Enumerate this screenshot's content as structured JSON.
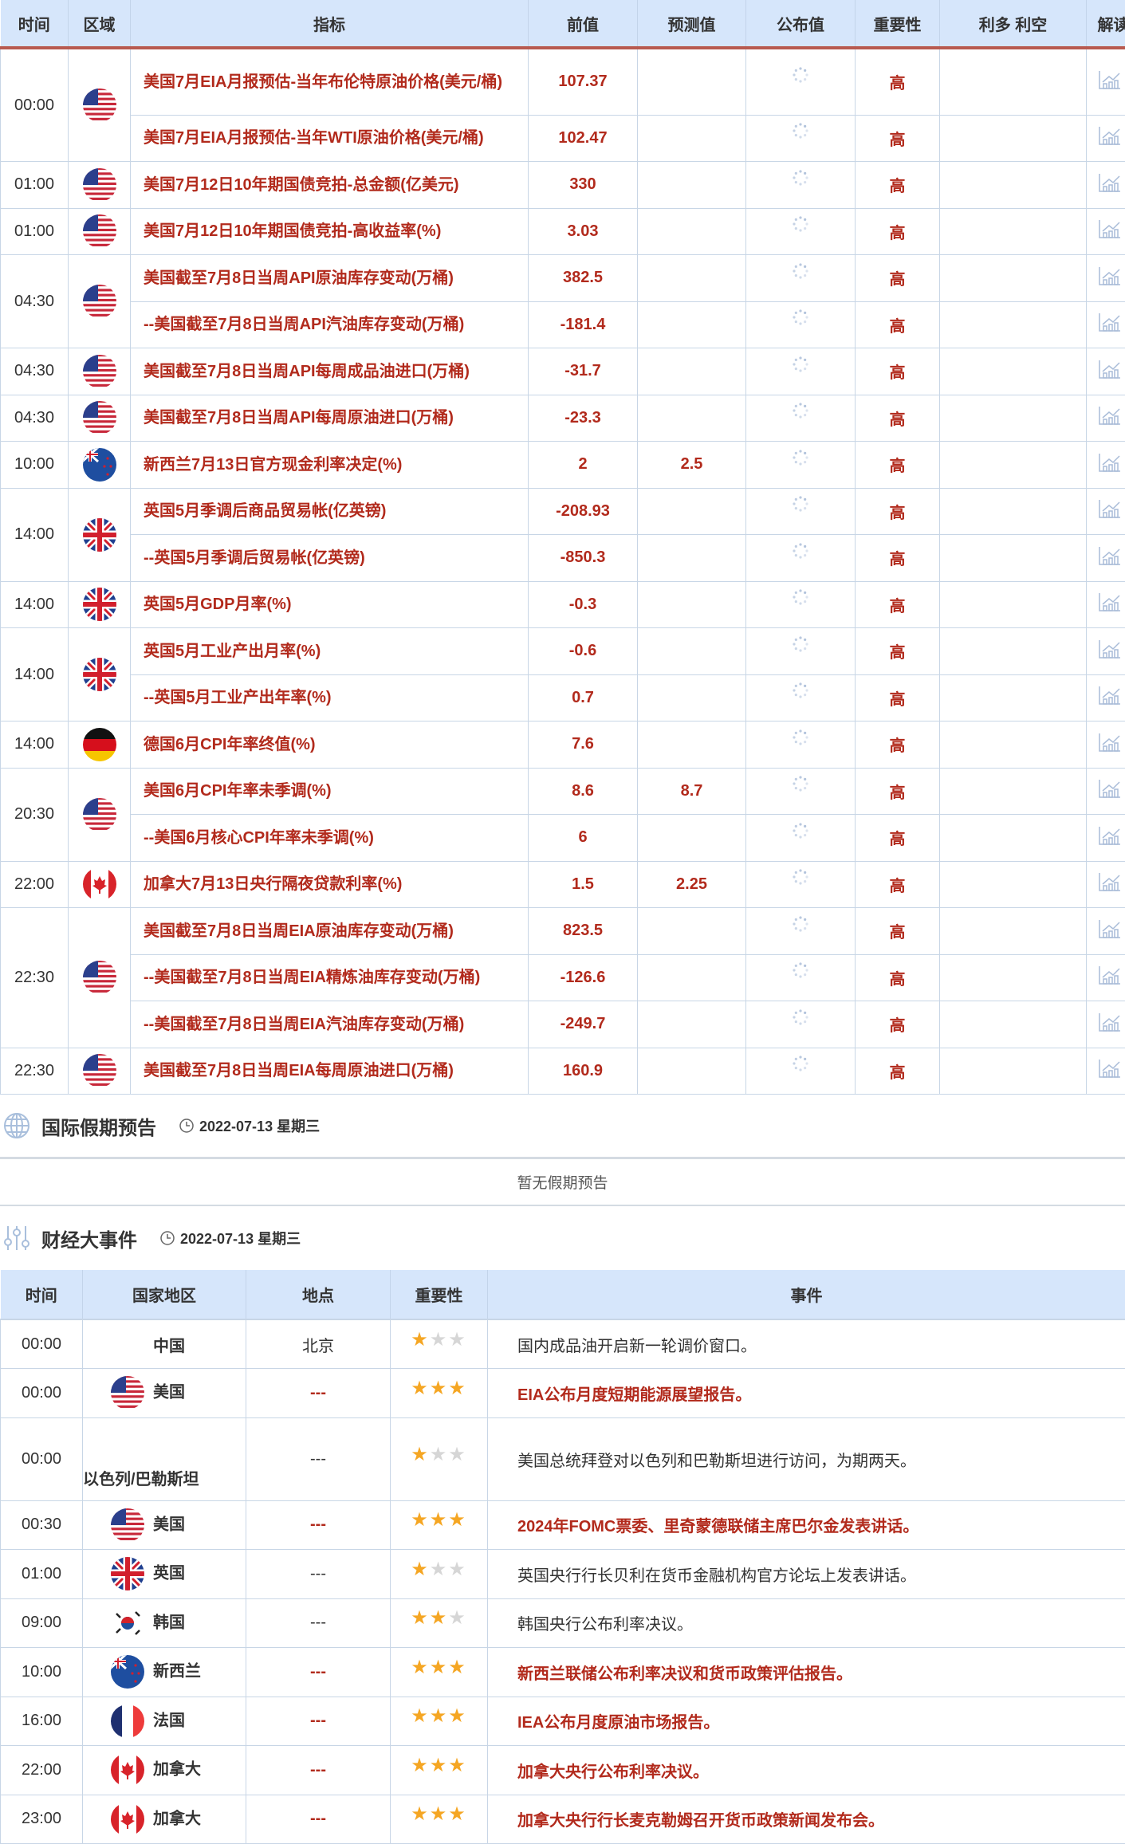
{
  "econ_table": {
    "headers": [
      "时间",
      "区域",
      "指标",
      "前值",
      "预测值",
      "公布值",
      "重要性",
      "利多 利空",
      "解读"
    ],
    "groups": [
      {
        "time": "00:00",
        "flag": "us",
        "rows": [
          {
            "indicator": "美国7月EIA月报预估-当年布伦特原油价格(美元/桶)",
            "previous": "107.37",
            "forecast": "",
            "importance": "高"
          },
          {
            "indicator": "美国7月EIA月报预估-当年WTI原油价格(美元/桶)",
            "previous": "102.47",
            "forecast": "",
            "importance": "高"
          }
        ]
      },
      {
        "time": "01:00",
        "flag": "us",
        "rows": [
          {
            "indicator": "美国7月12日10年期国债竞拍-总金额(亿美元)",
            "previous": "330",
            "forecast": "",
            "importance": "高"
          }
        ]
      },
      {
        "time": "01:00",
        "flag": "us",
        "rows": [
          {
            "indicator": "美国7月12日10年期国债竞拍-高收益率(%)",
            "previous": "3.03",
            "forecast": "",
            "importance": "高"
          }
        ]
      },
      {
        "time": "04:30",
        "flag": "us",
        "rows": [
          {
            "indicator": "美国截至7月8日当周API原油库存变动(万桶)",
            "previous": "382.5",
            "forecast": "",
            "importance": "高"
          },
          {
            "indicator": "--美国截至7月8日当周API汽油库存变动(万桶)",
            "previous": "-181.4",
            "forecast": "",
            "importance": "高"
          }
        ]
      },
      {
        "time": "04:30",
        "flag": "us",
        "rows": [
          {
            "indicator": "美国截至7月8日当周API每周成品油进口(万桶)",
            "previous": "-31.7",
            "forecast": "",
            "importance": "高"
          }
        ]
      },
      {
        "time": "04:30",
        "flag": "us",
        "rows": [
          {
            "indicator": "美国截至7月8日当周API每周原油进口(万桶)",
            "previous": "-23.3",
            "forecast": "",
            "importance": "高"
          }
        ]
      },
      {
        "time": "10:00",
        "flag": "nz",
        "rows": [
          {
            "indicator": "新西兰7月13日官方现金利率决定(%)",
            "previous": "2",
            "forecast": "2.5",
            "importance": "高"
          }
        ]
      },
      {
        "time": "14:00",
        "flag": "uk",
        "rows": [
          {
            "indicator": "英国5月季调后商品贸易帐(亿英镑)",
            "previous": "-208.93",
            "forecast": "",
            "importance": "高"
          },
          {
            "indicator": "--英国5月季调后贸易帐(亿英镑)",
            "previous": "-850.3",
            "forecast": "",
            "importance": "高"
          }
        ]
      },
      {
        "time": "14:00",
        "flag": "uk",
        "rows": [
          {
            "indicator": "英国5月GDP月率(%)",
            "previous": "-0.3",
            "forecast": "",
            "importance": "高"
          }
        ]
      },
      {
        "time": "14:00",
        "flag": "uk",
        "rows": [
          {
            "indicator": "英国5月工业产出月率(%)",
            "previous": "-0.6",
            "forecast": "",
            "importance": "高"
          },
          {
            "indicator": "--英国5月工业产出年率(%)",
            "previous": "0.7",
            "forecast": "",
            "importance": "高"
          }
        ]
      },
      {
        "time": "14:00",
        "flag": "de",
        "rows": [
          {
            "indicator": "德国6月CPI年率终值(%)",
            "previous": "7.6",
            "forecast": "",
            "importance": "高"
          }
        ]
      },
      {
        "time": "20:30",
        "flag": "us",
        "rows": [
          {
            "indicator": "美国6月CPI年率未季调(%)",
            "previous": "8.6",
            "forecast": "8.7",
            "importance": "高"
          },
          {
            "indicator": "--美国6月核心CPI年率未季调(%)",
            "previous": "6",
            "forecast": "",
            "importance": "高"
          }
        ]
      },
      {
        "time": "22:00",
        "flag": "ca",
        "rows": [
          {
            "indicator": "加拿大7月13日央行隔夜贷款利率(%)",
            "previous": "1.5",
            "forecast": "2.25",
            "importance": "高"
          }
        ]
      },
      {
        "time": "22:30",
        "flag": "us",
        "rows": [
          {
            "indicator": "美国截至7月8日当周EIA原油库存变动(万桶)",
            "previous": "823.5",
            "forecast": "",
            "importance": "高"
          },
          {
            "indicator": "--美国截至7月8日当周EIA精炼油库存变动(万桶)",
            "previous": "-126.6",
            "forecast": "",
            "importance": "高"
          },
          {
            "indicator": "--美国截至7月8日当周EIA汽油库存变动(万桶)",
            "previous": "-249.7",
            "forecast": "",
            "importance": "高"
          }
        ]
      },
      {
        "time": "22:30",
        "flag": "us",
        "rows": [
          {
            "indicator": "美国截至7月8日当周EIA每周原油进口(万桶)",
            "previous": "160.9",
            "forecast": "",
            "importance": "高"
          }
        ]
      }
    ]
  },
  "holidays": {
    "title": "国际假期预告",
    "date": "2022-07-13 星期三",
    "empty_text": "暂无假期预告"
  },
  "events": {
    "title": "财经大事件",
    "date": "2022-07-13 星期三",
    "headers": [
      "时间",
      "国家地区",
      "地点",
      "重要性",
      "事件"
    ],
    "rows": [
      {
        "time": "00:00",
        "flag": "",
        "country": "中国",
        "location": "北京",
        "stars": 1,
        "event": "国内成品油开启新一轮调价窗口。",
        "highlight": false
      },
      {
        "time": "00:00",
        "flag": "us",
        "country": "美国",
        "location": "---",
        "stars": 3,
        "event": "EIA公布月度短期能源展望报告。",
        "highlight": true
      },
      {
        "time": "00:00",
        "flag": "",
        "country": "以色列/巴勒斯坦",
        "location": "---",
        "stars": 1,
        "event": "美国总统拜登对以色列和巴勒斯坦进行访问，为期两天。",
        "highlight": false
      },
      {
        "time": "00:30",
        "flag": "us",
        "country": "美国",
        "location": "---",
        "stars": 3,
        "event": "2024年FOMC票委、里奇蒙德联储主席巴尔金发表讲话。",
        "highlight": true
      },
      {
        "time": "01:00",
        "flag": "uk",
        "country": "英国",
        "location": "---",
        "stars": 1,
        "event": "英国央行行长贝利在货币金融机构官方论坛上发表讲话。",
        "highlight": false
      },
      {
        "time": "09:00",
        "flag": "kr",
        "country": "韩国",
        "location": "---",
        "stars": 2,
        "event": "韩国央行公布利率决议。",
        "highlight": false
      },
      {
        "time": "10:00",
        "flag": "nz",
        "country": "新西兰",
        "location": "---",
        "stars": 3,
        "event": "新西兰联储公布利率决议和货币政策评估报告。",
        "highlight": true
      },
      {
        "time": "16:00",
        "flag": "fr",
        "country": "法国",
        "location": "---",
        "stars": 3,
        "event": "IEA公布月度原油市场报告。",
        "highlight": true
      },
      {
        "time": "22:00",
        "flag": "ca",
        "country": "加拿大",
        "location": "---",
        "stars": 3,
        "event": "加拿大央行公布利率决议。",
        "highlight": true
      },
      {
        "time": "23:00",
        "flag": "ca",
        "country": "加拿大",
        "location": "---",
        "stars": 3,
        "event": "加拿大央行行长麦克勒姆召开货币政策新闻发布会。",
        "highlight": true
      }
    ]
  },
  "colors": {
    "header_bg": "#d6e6fb",
    "accent_red": "#b22a1c",
    "star_on": "#f5a623",
    "star_off": "#d6d6d6"
  }
}
